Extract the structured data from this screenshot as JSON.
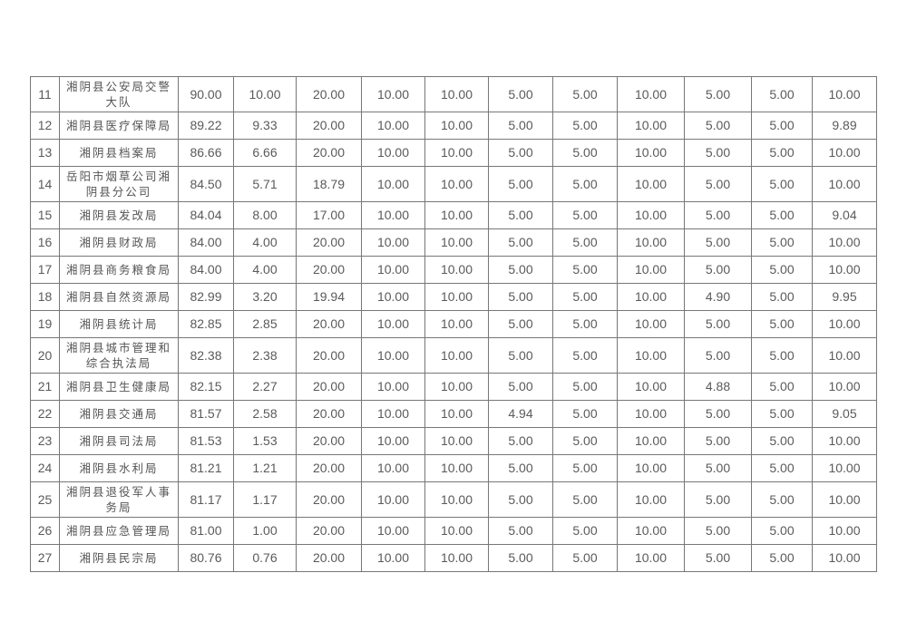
{
  "rows": [
    {
      "no": "11",
      "name": "湘阴县公安局交警大队",
      "total": "90.00",
      "v": [
        "10.00",
        "20.00",
        "10.00",
        "10.00",
        "5.00",
        "5.00",
        "10.00",
        "5.00",
        "5.00",
        "10.00"
      ]
    },
    {
      "no": "12",
      "name": "湘阴县医疗保障局",
      "total": "89.22",
      "v": [
        "9.33",
        "20.00",
        "10.00",
        "10.00",
        "5.00",
        "5.00",
        "10.00",
        "5.00",
        "5.00",
        "9.89"
      ]
    },
    {
      "no": "13",
      "name": "湘阴县档案局",
      "total": "86.66",
      "v": [
        "6.66",
        "20.00",
        "10.00",
        "10.00",
        "5.00",
        "5.00",
        "10.00",
        "5.00",
        "5.00",
        "10.00"
      ]
    },
    {
      "no": "14",
      "name": "岳阳市烟草公司湘阴县分公司",
      "total": "84.50",
      "v": [
        "5.71",
        "18.79",
        "10.00",
        "10.00",
        "5.00",
        "5.00",
        "10.00",
        "5.00",
        "5.00",
        "10.00"
      ]
    },
    {
      "no": "15",
      "name": "湘阴县发改局",
      "total": "84.04",
      "v": [
        "8.00",
        "17.00",
        "10.00",
        "10.00",
        "5.00",
        "5.00",
        "10.00",
        "5.00",
        "5.00",
        "9.04"
      ]
    },
    {
      "no": "16",
      "name": "湘阴县财政局",
      "total": "84.00",
      "v": [
        "4.00",
        "20.00",
        "10.00",
        "10.00",
        "5.00",
        "5.00",
        "10.00",
        "5.00",
        "5.00",
        "10.00"
      ]
    },
    {
      "no": "17",
      "name": "湘阴县商务粮食局",
      "total": "84.00",
      "v": [
        "4.00",
        "20.00",
        "10.00",
        "10.00",
        "5.00",
        "5.00",
        "10.00",
        "5.00",
        "5.00",
        "10.00"
      ]
    },
    {
      "no": "18",
      "name": "湘阴县自然资源局",
      "total": "82.99",
      "v": [
        "3.20",
        "19.94",
        "10.00",
        "10.00",
        "5.00",
        "5.00",
        "10.00",
        "4.90",
        "5.00",
        "9.95"
      ]
    },
    {
      "no": "19",
      "name": "湘阴县统计局",
      "total": "82.85",
      "v": [
        "2.85",
        "20.00",
        "10.00",
        "10.00",
        "5.00",
        "5.00",
        "10.00",
        "5.00",
        "5.00",
        "10.00"
      ]
    },
    {
      "no": "20",
      "name": "湘阴县城市管理和综合执法局",
      "total": "82.38",
      "v": [
        "2.38",
        "20.00",
        "10.00",
        "10.00",
        "5.00",
        "5.00",
        "10.00",
        "5.00",
        "5.00",
        "10.00"
      ]
    },
    {
      "no": "21",
      "name": "湘阴县卫生健康局",
      "total": "82.15",
      "v": [
        "2.27",
        "20.00",
        "10.00",
        "10.00",
        "5.00",
        "5.00",
        "10.00",
        "4.88",
        "5.00",
        "10.00"
      ]
    },
    {
      "no": "22",
      "name": "湘阴县交通局",
      "total": "81.57",
      "v": [
        "2.58",
        "20.00",
        "10.00",
        "10.00",
        "4.94",
        "5.00",
        "10.00",
        "5.00",
        "5.00",
        "9.05"
      ]
    },
    {
      "no": "23",
      "name": "湘阴县司法局",
      "total": "81.53",
      "v": [
        "1.53",
        "20.00",
        "10.00",
        "10.00",
        "5.00",
        "5.00",
        "10.00",
        "5.00",
        "5.00",
        "10.00"
      ]
    },
    {
      "no": "24",
      "name": "湘阴县水利局",
      "total": "81.21",
      "v": [
        "1.21",
        "20.00",
        "10.00",
        "10.00",
        "5.00",
        "5.00",
        "10.00",
        "5.00",
        "5.00",
        "10.00"
      ]
    },
    {
      "no": "25",
      "name": "湘阴县退役军人事务局",
      "total": "81.17",
      "v": [
        "1.17",
        "20.00",
        "10.00",
        "10.00",
        "5.00",
        "5.00",
        "10.00",
        "5.00",
        "5.00",
        "10.00"
      ]
    },
    {
      "no": "26",
      "name": "湘阴县应急管理局",
      "total": "81.00",
      "v": [
        "1.00",
        "20.00",
        "10.00",
        "10.00",
        "5.00",
        "5.00",
        "10.00",
        "5.00",
        "5.00",
        "10.00"
      ]
    },
    {
      "no": "27",
      "name": "湘阴县民宗局",
      "total": "80.76",
      "v": [
        "0.76",
        "20.00",
        "10.00",
        "10.00",
        "5.00",
        "5.00",
        "10.00",
        "5.00",
        "5.00",
        "10.00"
      ]
    }
  ]
}
